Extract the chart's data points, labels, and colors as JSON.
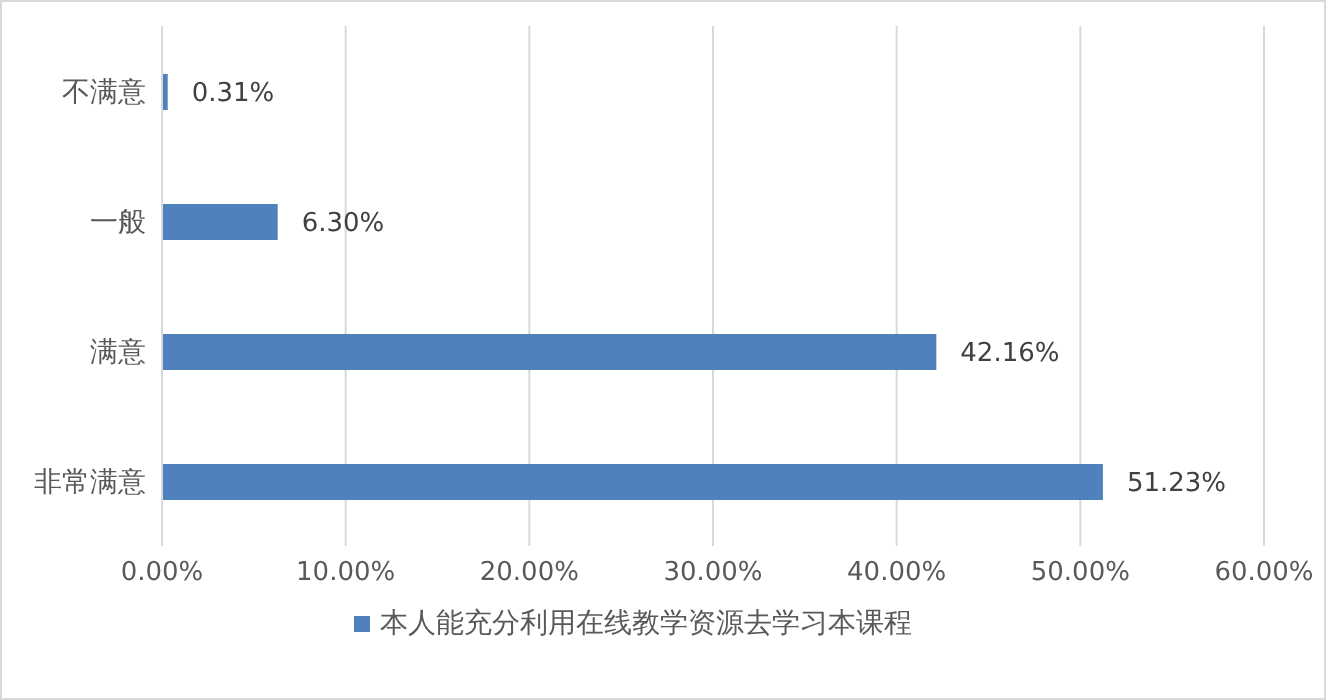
{
  "chart_data": {
    "type": "bar",
    "orientation": "horizontal",
    "categories": [
      "不满意",
      "一般",
      "满意",
      "非常满意"
    ],
    "series": [
      {
        "name": "本人能充分利用在线教学资源去学习本课程",
        "color": "#4f81bd",
        "values": [
          0.31,
          6.3,
          42.16,
          51.23
        ],
        "value_labels": [
          "0.31%",
          "6.30%",
          "42.16%",
          "51.23%"
        ]
      }
    ],
    "xlim": [
      0,
      60
    ],
    "xticks": [
      {
        "value": 0,
        "label": "0.00%"
      },
      {
        "value": 10,
        "label": "10.00%"
      },
      {
        "value": 20,
        "label": "20.00%"
      },
      {
        "value": 30,
        "label": "30.00%"
      },
      {
        "value": 40,
        "label": "40.00%"
      },
      {
        "value": 50,
        "label": "50.00%"
      },
      {
        "value": 60,
        "label": "60.00%"
      }
    ],
    "grid": "x",
    "legend": "bottom"
  }
}
